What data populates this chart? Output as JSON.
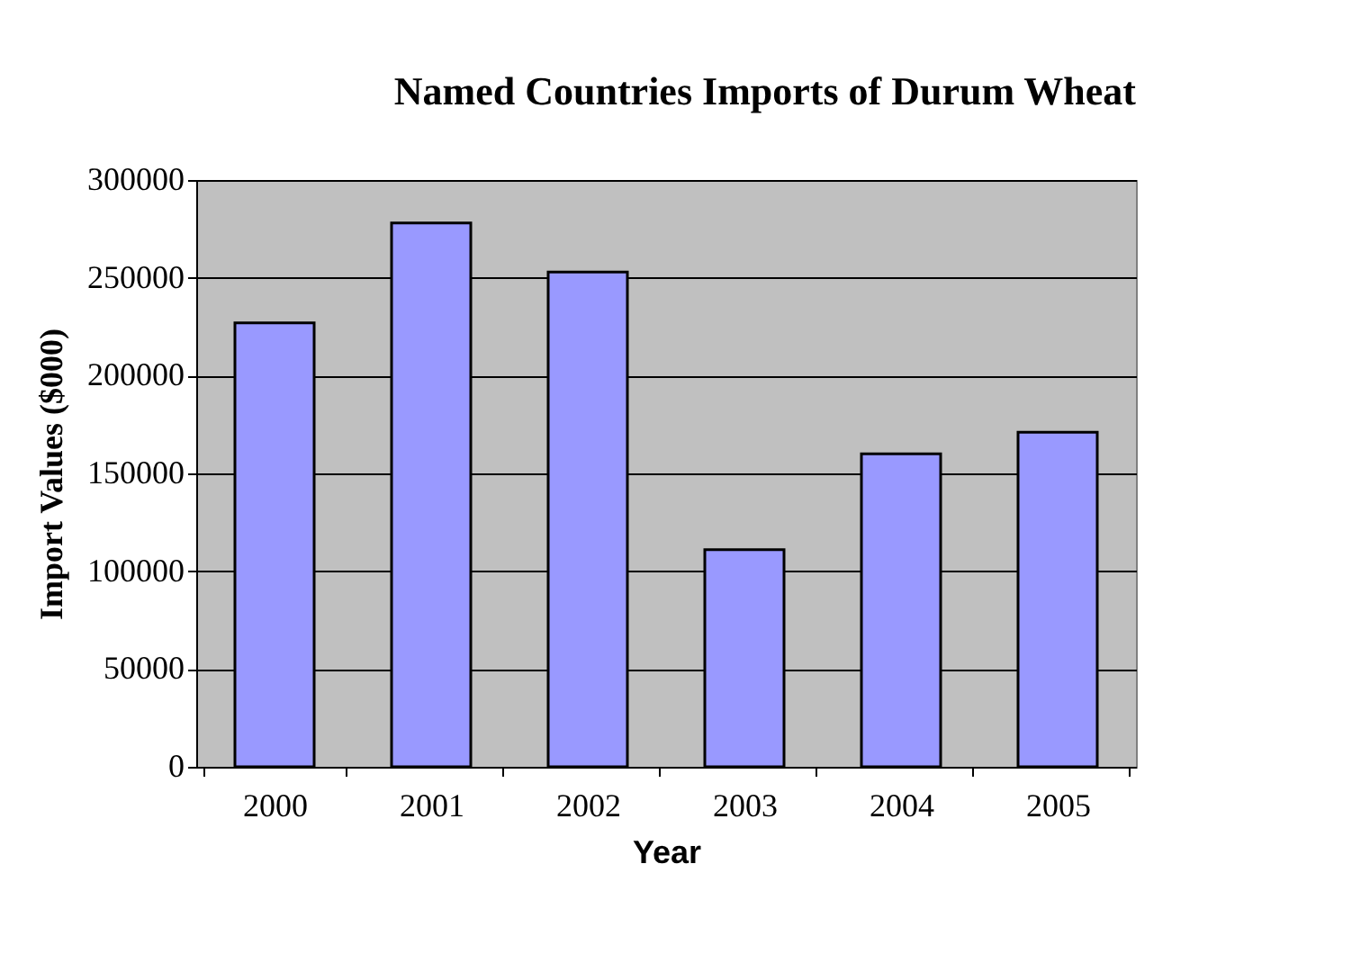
{
  "chart_data": {
    "type": "bar",
    "title": "Named Countries Imports of Durum Wheat",
    "xlabel": "Year",
    "ylabel": "Import Values ($000)",
    "categories": [
      "2000",
      "2001",
      "2002",
      "2003",
      "2004",
      "2005"
    ],
    "values": [
      227000,
      278000,
      253000,
      111000,
      160000,
      171000
    ],
    "color": "#9999ff",
    "ylim": [
      0,
      300000
    ],
    "yticks": [
      0,
      50000,
      100000,
      150000,
      200000,
      250000,
      300000
    ],
    "grid": "y"
  }
}
